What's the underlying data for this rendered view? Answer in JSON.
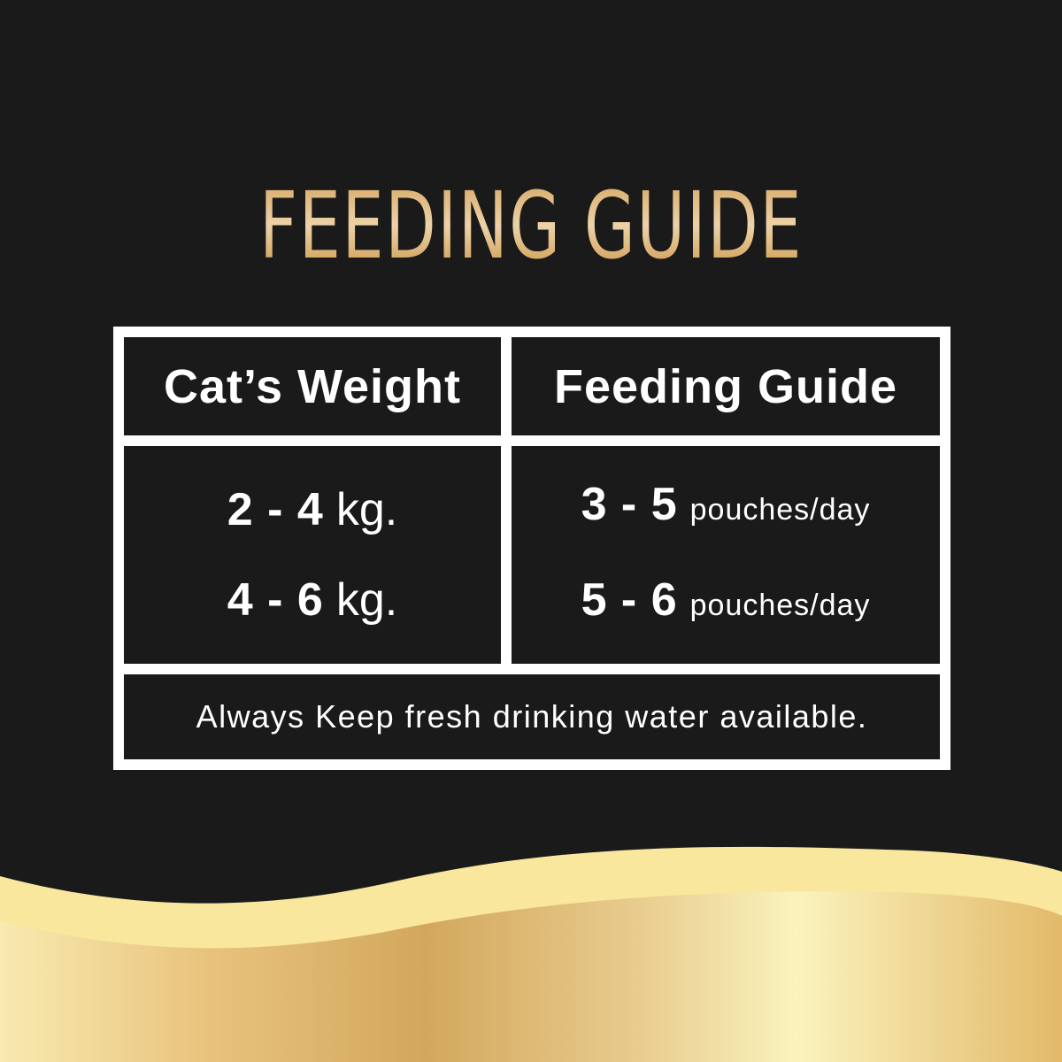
{
  "title": "FEEDING GUIDE",
  "table": {
    "headers": [
      "Cat’s Weight",
      "Feeding Guide"
    ],
    "rows": [
      {
        "weight": "2 - 4",
        "weight_unit": "kg.",
        "amount": "3 - 5",
        "amount_unit": "pouches/day"
      },
      {
        "weight": "4 - 6",
        "weight_unit": "kg.",
        "amount": "5 - 6",
        "amount_unit": "pouches/day"
      }
    ],
    "footer": "Always Keep fresh drinking water available."
  },
  "colors": {
    "background": "#1a1a1a",
    "gold": "#d4a35c",
    "cream": "#f8e79c"
  }
}
